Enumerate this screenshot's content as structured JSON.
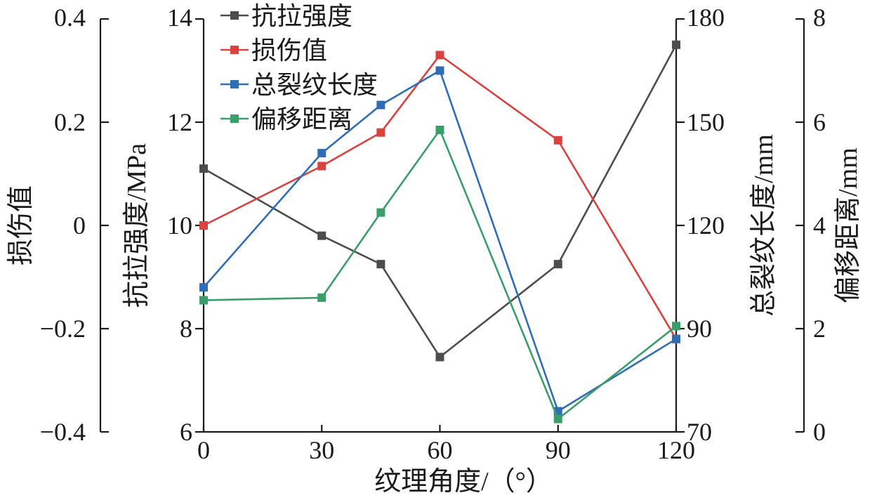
{
  "chart_data": {
    "type": "line",
    "xlabel": "纹理角度/（°）",
    "x": [
      0,
      30,
      45,
      60,
      90,
      120
    ],
    "xlim": [
      0,
      120
    ],
    "xticks": [
      0,
      30,
      60,
      90,
      120
    ],
    "axes": {
      "damage": {
        "label": "损伤值",
        "ylim": [
          -0.4,
          0.4
        ],
        "ticks": [
          "0.4",
          "0.2",
          "0",
          "−0.2",
          "−0.4"
        ],
        "tickValues": [
          0.4,
          0.2,
          0,
          -0.2,
          -0.4
        ]
      },
      "strength": {
        "label": "抗拉强度/MPa",
        "ylim": [
          6,
          14
        ],
        "ticks": [
          "14",
          "12",
          "10",
          "8",
          "6"
        ],
        "tickValues": [
          14,
          12,
          10,
          8,
          6
        ]
      },
      "crack": {
        "label": "总裂纹长度/mm",
        "ylim": [
          70,
          180
        ],
        "ticks": [
          "180",
          "150",
          "120",
          "90",
          "70"
        ],
        "tickValues": [
          180,
          150,
          120,
          90,
          70
        ]
      },
      "offset": {
        "label": "偏移距离/mm",
        "ylim": [
          0,
          8
        ],
        "ticks": [
          "8",
          "6",
          "4",
          "2",
          "0"
        ],
        "tickValues": [
          8,
          6,
          4,
          2,
          0
        ]
      }
    },
    "series": [
      {
        "name": "抗拉强度",
        "axis": "strength",
        "color": "#4d4d4d",
        "values": [
          11.1,
          9.8,
          9.25,
          7.45,
          9.25,
          13.5
        ]
      },
      {
        "name": "损伤值",
        "axis": "damage",
        "color": "#d9423f",
        "values": [
          0.0,
          0.115,
          0.18,
          0.33,
          0.165,
          -0.22
        ]
      },
      {
        "name": "总裂纹长度",
        "axis": "crack",
        "color": "#2f6db5",
        "values": [
          102,
          141,
          155,
          165,
          74,
          88
        ]
      },
      {
        "name": "偏移距离",
        "axis": "offset",
        "color": "#3a9e6b",
        "values": [
          2.55,
          2.6,
          4.25,
          5.85,
          0.25,
          2.05
        ]
      }
    ],
    "legend": "top-left",
    "grid": false
  }
}
